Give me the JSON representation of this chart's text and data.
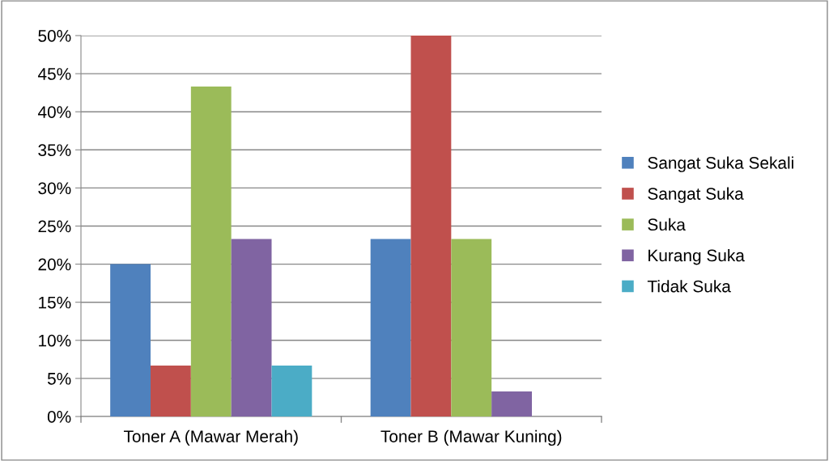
{
  "chart_data": {
    "type": "bar",
    "categories": [
      "Toner A (Mawar Merah)",
      "Toner B (Mawar Kuning)"
    ],
    "series": [
      {
        "name": "Sangat Suka Sekali",
        "color": "#4f81bd",
        "values": [
          20,
          23.3
        ]
      },
      {
        "name": "Sangat Suka",
        "color": "#c0504d",
        "values": [
          6.7,
          50
        ]
      },
      {
        "name": "Suka",
        "color": "#9bbb59",
        "values": [
          43.3,
          23.3
        ]
      },
      {
        "name": "Kurang Suka",
        "color": "#8064a2",
        "values": [
          23.3,
          3.3
        ]
      },
      {
        "name": "Tidak Suka",
        "color": "#4bacc6",
        "values": [
          6.7,
          0
        ]
      }
    ],
    "ylim": [
      0,
      50
    ],
    "yticks": [
      {
        "value": 0,
        "label": "0%"
      },
      {
        "value": 5,
        "label": "5%"
      },
      {
        "value": 10,
        "label": "10%"
      },
      {
        "value": 15,
        "label": "15%"
      },
      {
        "value": 20,
        "label": "20%"
      },
      {
        "value": 25,
        "label": "25%"
      },
      {
        "value": 30,
        "label": "30%"
      },
      {
        "value": 35,
        "label": "35%"
      },
      {
        "value": 40,
        "label": "40%"
      },
      {
        "value": 45,
        "label": "45%"
      },
      {
        "value": 50,
        "label": "50%"
      }
    ],
    "grid": "y",
    "legend": "right"
  }
}
